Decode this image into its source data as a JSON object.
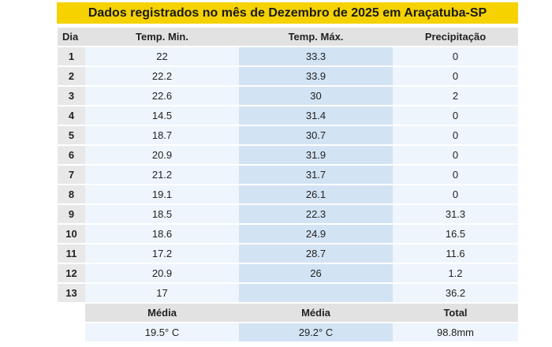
{
  "title": "Dados registrados no mês de Dezembro de 2025 em Araçatuba-SP",
  "headers": {
    "day": "Dia",
    "min": "Temp. Min.",
    "max": "Temp. Máx.",
    "precip": "Precipitação"
  },
  "rows": [
    {
      "day": "1",
      "min": "22",
      "max": "33.3",
      "precip": "0"
    },
    {
      "day": "2",
      "min": "22.2",
      "max": "33.9",
      "precip": "0"
    },
    {
      "day": "3",
      "min": "22.6",
      "max": "30",
      "precip": "2"
    },
    {
      "day": "4",
      "min": "14.5",
      "max": "31.4",
      "precip": "0"
    },
    {
      "day": "5",
      "min": "18.7",
      "max": "30.7",
      "precip": "0"
    },
    {
      "day": "6",
      "min": "20.9",
      "max": "31.9",
      "precip": "0"
    },
    {
      "day": "7",
      "min": "21.2",
      "max": "31.7",
      "precip": "0"
    },
    {
      "day": "8",
      "min": "19.1",
      "max": "26.1",
      "precip": "0"
    },
    {
      "day": "9",
      "min": "18.5",
      "max": "22.3",
      "precip": "31.3"
    },
    {
      "day": "10",
      "min": "18.6",
      "max": "24.9",
      "precip": "16.5"
    },
    {
      "day": "11",
      "min": "17.2",
      "max": "28.7",
      "precip": "11.6"
    },
    {
      "day": "12",
      "min": "20.9",
      "max": "26",
      "precip": "1.2"
    },
    {
      "day": "13",
      "min": "17",
      "max": "",
      "precip": "36.2"
    }
  ],
  "summary": {
    "min_label": "Média",
    "max_label": "Média",
    "precip_label": "Total",
    "min_value": "19.5° C",
    "max_value": "29.2° C",
    "precip_value": "98.8mm"
  },
  "colors": {
    "title_background": "#f5d200",
    "header_background": "#e2e2e2",
    "cell_background": "#eef5fc",
    "max_column_background": "#d2e3f4"
  }
}
